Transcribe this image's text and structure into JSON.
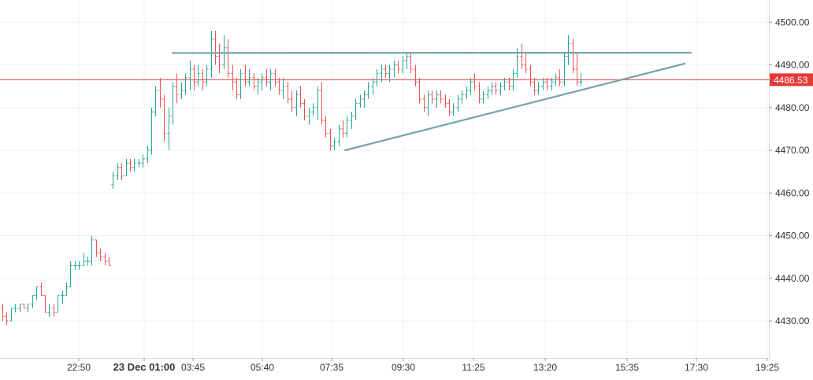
{
  "chart_data": {
    "type": "ohlc",
    "title": "",
    "xlabel": "",
    "ylabel": "",
    "grid": true,
    "legend": "none",
    "ylim": [
      4422,
      4505
    ],
    "time_axis": {
      "labels": [
        "22:50",
        "23 Dec 01:00",
        "03:45",
        "05:40",
        "07:35",
        "09:30",
        "11:25",
        "13:20",
        "15:35",
        "17:30",
        "19:25"
      ],
      "bold_label": "23 Dec 01:00"
    },
    "y_ticks": [
      4430,
      4440,
      4450,
      4460,
      4470,
      4480,
      4490,
      4500
    ],
    "y_tick_labels": [
      "4430.00",
      "4440.00",
      "4450.00",
      "4460.00",
      "4470.00",
      "4480.00",
      "4490.00",
      "4500.00"
    ],
    "last_price": {
      "value": 4486.53,
      "label": "4486.53"
    },
    "colors": {
      "up": "#26a69a",
      "down": "#ef5350",
      "last_price_line": "#e53935",
      "trendline": "#78a2a8",
      "grid": "#eef0f3",
      "axis_text": "#333333"
    },
    "series": [
      {
        "points": [
          [
            4433,
            4434,
            4430,
            4431
          ],
          [
            4431,
            4432,
            4429,
            4430
          ],
          [
            4430,
            4433,
            4430,
            4433
          ],
          [
            4433,
            4434,
            4432,
            4433
          ],
          [
            4433,
            4434,
            4432,
            4434
          ],
          [
            4434,
            4434,
            4433,
            4433
          ],
          [
            4433,
            4434,
            4432,
            4434
          ],
          [
            4434,
            4436,
            4433,
            4436
          ],
          [
            4436,
            4438,
            4435,
            4438
          ],
          [
            4438,
            4439,
            4436,
            4436
          ],
          [
            4436,
            4436,
            4432,
            4432
          ],
          [
            4432,
            4434,
            4431,
            4433
          ],
          [
            4433,
            4434,
            4431,
            4432
          ],
          [
            4432,
            4436,
            4432,
            4436
          ],
          [
            4436,
            4437,
            4434,
            4436
          ],
          [
            4436,
            4439,
            4436,
            4438
          ],
          [
            4438,
            4444,
            4438,
            4443
          ],
          [
            4443,
            4444,
            4442,
            4443
          ],
          [
            4443,
            4444,
            4442,
            4443
          ],
          [
            4443,
            4446,
            4443,
            4444
          ],
          [
            4444,
            4445,
            4443,
            4444
          ],
          [
            4444,
            4450,
            4443,
            4449
          ],
          [
            4449,
            4449,
            4445,
            4446
          ],
          [
            4446,
            4447,
            4444,
            4445
          ],
          [
            4445,
            4446,
            4443,
            4444
          ],
          [
            4444,
            4445,
            4443,
            4443
          ],
          [
            4462,
            4465,
            4461,
            4464
          ],
          [
            4464,
            4467,
            4463,
            4466
          ],
          [
            4466,
            4467,
            4463,
            4464
          ],
          [
            4464,
            4468,
            4464,
            4467
          ],
          [
            4467,
            4468,
            4465,
            4466
          ],
          [
            4466,
            4468,
            4465,
            4467
          ],
          [
            4467,
            4468,
            4466,
            4467
          ],
          [
            4467,
            4469,
            4466,
            4468
          ],
          [
            4468,
            4471,
            4467,
            4470
          ],
          [
            4470,
            4480,
            4469,
            4479
          ],
          [
            4479,
            4485,
            4478,
            4484
          ],
          [
            4484,
            4487,
            4480,
            4482
          ],
          [
            4482,
            4483,
            4472,
            4474
          ],
          [
            4474,
            4480,
            4470,
            4478
          ],
          [
            4478,
            4486,
            4476,
            4485
          ],
          [
            4485,
            4488,
            4481,
            4483
          ],
          [
            4483,
            4486,
            4482,
            4484
          ],
          [
            4484,
            4488,
            4483,
            4487
          ],
          [
            4487,
            4491,
            4484,
            4489
          ],
          [
            4489,
            4490,
            4484,
            4486
          ],
          [
            4486,
            4490,
            4485,
            4488
          ],
          [
            4488,
            4489,
            4484,
            4486
          ],
          [
            4486,
            4490,
            4485,
            4489
          ],
          [
            4489,
            4498,
            4487,
            4496
          ],
          [
            4496,
            4498,
            4490,
            4492
          ],
          [
            4492,
            4495,
            4488,
            4490
          ],
          [
            4490,
            4497,
            4489,
            4494
          ],
          [
            4494,
            4496,
            4487,
            4488
          ],
          [
            4488,
            4490,
            4484,
            4486
          ],
          [
            4486,
            4487,
            4482,
            4483
          ],
          [
            4483,
            4489,
            4482,
            4488
          ],
          [
            4488,
            4490,
            4485,
            4486
          ],
          [
            4486,
            4489,
            4485,
            4487
          ],
          [
            4487,
            4488,
            4484,
            4485
          ],
          [
            4485,
            4487,
            4483,
            4486
          ],
          [
            4486,
            4488,
            4484,
            4487
          ],
          [
            4487,
            4489,
            4485,
            4486
          ],
          [
            4486,
            4489,
            4484,
            4488
          ],
          [
            4488,
            4489,
            4485,
            4486
          ],
          [
            4486,
            4487,
            4483,
            4484
          ],
          [
            4484,
            4487,
            4482,
            4485
          ],
          [
            4485,
            4486,
            4481,
            4482
          ],
          [
            4482,
            4484,
            4479,
            4480
          ],
          [
            4480,
            4484,
            4478,
            4483
          ],
          [
            4483,
            4485,
            4480,
            4481
          ],
          [
            4481,
            4482,
            4477,
            4478
          ],
          [
            4478,
            4480,
            4476,
            4479
          ],
          [
            4479,
            4481,
            4478,
            4480
          ],
          [
            4480,
            4485,
            4477,
            4484
          ],
          [
            4484,
            4486,
            4476,
            4477
          ],
          [
            4477,
            4478,
            4473,
            4474
          ],
          [
            4474,
            4475,
            4470,
            4471
          ],
          [
            4471,
            4473,
            4470,
            4472
          ],
          [
            4472,
            4476,
            4471,
            4475
          ],
          [
            4475,
            4477,
            4473,
            4474
          ],
          [
            4474,
            4478,
            4473,
            4477
          ],
          [
            4477,
            4479,
            4475,
            4478
          ],
          [
            4478,
            4482,
            4477,
            4481
          ],
          [
            4481,
            4483,
            4480,
            4482
          ],
          [
            4482,
            4484,
            4480,
            4483
          ],
          [
            4483,
            4486,
            4482,
            4485
          ],
          [
            4485,
            4487,
            4483,
            4486
          ],
          [
            4486,
            4489,
            4485,
            4488
          ],
          [
            4488,
            4490,
            4486,
            4489
          ],
          [
            4489,
            4490,
            4487,
            4488
          ],
          [
            4488,
            4490,
            4486,
            4489
          ],
          [
            4489,
            4491,
            4487,
            4490
          ],
          [
            4490,
            4491,
            4488,
            4489
          ],
          [
            4489,
            4492,
            4488,
            4491
          ],
          [
            4491,
            4493,
            4489,
            4492
          ],
          [
            4492,
            4493,
            4488,
            4489
          ],
          [
            4489,
            4490,
            4485,
            4486
          ],
          [
            4486,
            4487,
            4481,
            4482
          ],
          [
            4482,
            4483,
            4479,
            4480
          ],
          [
            4480,
            4484,
            4478,
            4483
          ],
          [
            4483,
            4484,
            4481,
            4482
          ],
          [
            4482,
            4484,
            4480,
            4483
          ],
          [
            4483,
            4484,
            4481,
            4482
          ],
          [
            4482,
            4483,
            4480,
            4481
          ],
          [
            4481,
            4482,
            4478,
            4479
          ],
          [
            4479,
            4481,
            4478,
            4480
          ],
          [
            4480,
            4483,
            4479,
            4482
          ],
          [
            4482,
            4484,
            4481,
            4483
          ],
          [
            4483,
            4485,
            4482,
            4484
          ],
          [
            4484,
            4487,
            4483,
            4486
          ],
          [
            4486,
            4488,
            4484,
            4485
          ],
          [
            4485,
            4486,
            4481,
            4482
          ],
          [
            4482,
            4484,
            4481,
            4483
          ],
          [
            4483,
            4485,
            4482,
            4484
          ],
          [
            4484,
            4486,
            4483,
            4485
          ],
          [
            4485,
            4486,
            4483,
            4484
          ],
          [
            4484,
            4486,
            4483,
            4485
          ],
          [
            4485,
            4487,
            4484,
            4486
          ],
          [
            4486,
            4487,
            4484,
            4485
          ],
          [
            4485,
            4489,
            4484,
            4488
          ],
          [
            4488,
            4494,
            4487,
            4492
          ],
          [
            4492,
            4495,
            4489,
            4490
          ],
          [
            4490,
            4493,
            4488,
            4489
          ],
          [
            4489,
            4490,
            4485,
            4486
          ],
          [
            4486,
            4487,
            4483,
            4484
          ],
          [
            4484,
            4486,
            4483,
            4485
          ],
          [
            4485,
            4487,
            4484,
            4486
          ],
          [
            4486,
            4487,
            4484,
            4485
          ],
          [
            4485,
            4487,
            4484,
            4486
          ],
          [
            4486,
            4488,
            4485,
            4487
          ],
          [
            4487,
            4489,
            4485,
            4486
          ],
          [
            4486,
            4493,
            4485,
            4492
          ],
          [
            4492,
            4497,
            4490,
            4495
          ],
          [
            4495,
            4496,
            4488,
            4489
          ],
          [
            4489,
            4493,
            4485,
            4486
          ],
          [
            4486,
            4488,
            4485,
            4486
          ]
        ]
      }
    ],
    "horizontal_lines": [
      {
        "name": "resistance",
        "value": 4492.8,
        "x_start_index": 40,
        "x_end_index": 140
      },
      {
        "name": "last-price",
        "value": 4486.53
      }
    ],
    "trendlines": [
      {
        "name": "rising-support",
        "start": {
          "index": 85,
          "value": 4470
        },
        "end": {
          "index": 140,
          "value": 4490.3
        }
      }
    ]
  }
}
